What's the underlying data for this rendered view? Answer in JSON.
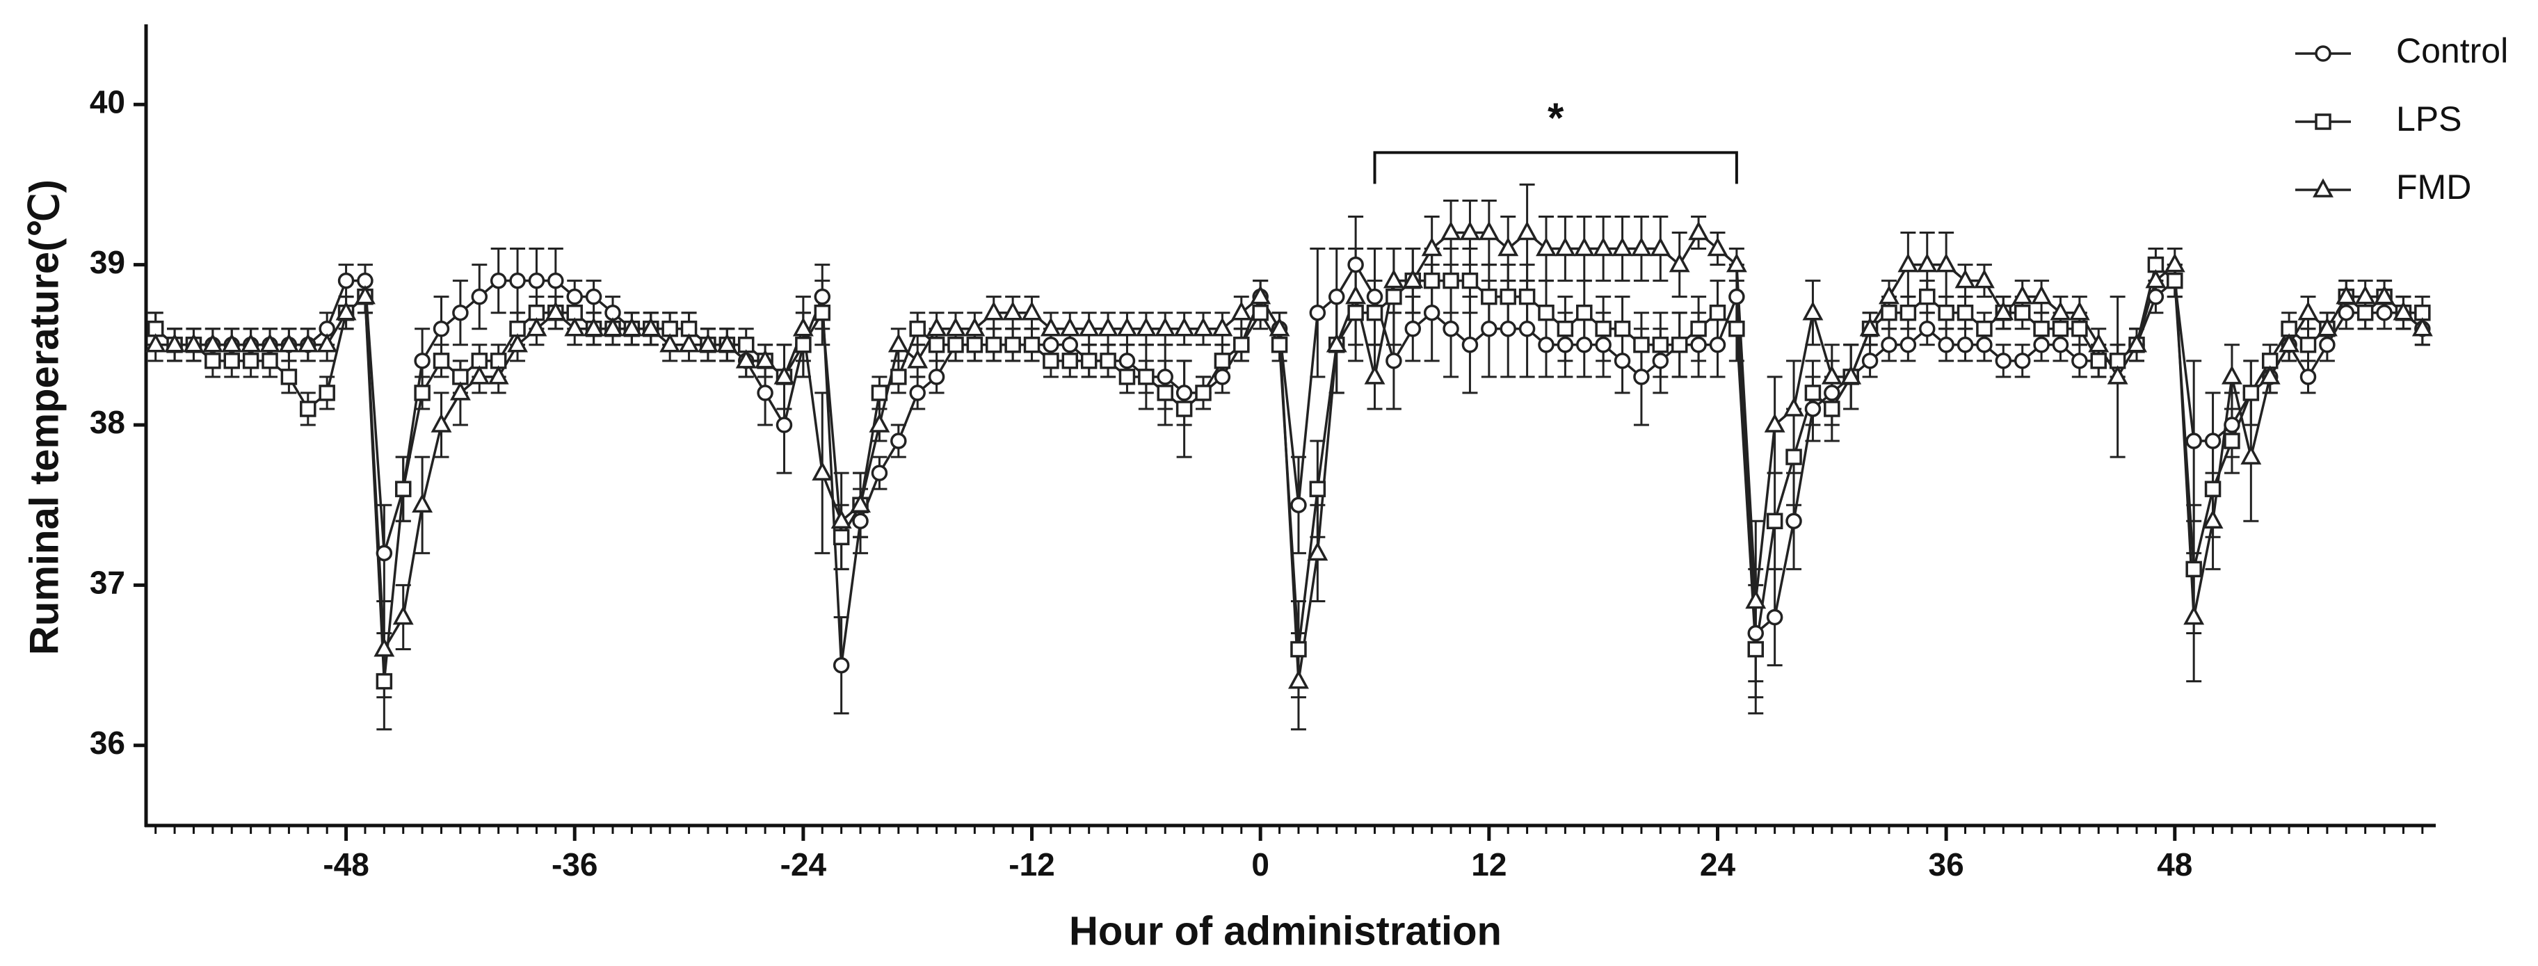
{
  "chart_data": {
    "type": "line",
    "xlabel": "Hour of administration",
    "ylabel": "Ruminal temperature(℃)",
    "xlim": [
      -58.5,
      61.7
    ],
    "ylim": [
      35.5,
      40.5
    ],
    "xticks": [
      -48,
      -36,
      -24,
      -12,
      0,
      12,
      24,
      36,
      48
    ],
    "yticks": [
      36,
      37,
      38,
      39,
      40
    ],
    "legend": "top-right",
    "annotations": [
      {
        "text": "*",
        "x": [
          6,
          25
        ],
        "y": 39.7
      }
    ],
    "x": [
      -58,
      -57,
      -56,
      -55,
      -54,
      -53,
      -52,
      -51,
      -50,
      -49,
      -48,
      -47,
      -46,
      -45,
      -44,
      -43,
      -42,
      -41,
      -40,
      -39,
      -38,
      -37,
      -36,
      -35,
      -34,
      -33,
      -32,
      -31,
      -30,
      -29,
      -28,
      -27,
      -26,
      -25,
      -24,
      -23,
      -22,
      -21,
      -20,
      -19,
      -18,
      -17,
      -16,
      -15,
      -14,
      -13,
      -12,
      -11,
      -10,
      -9,
      -8,
      -7,
      -6,
      -5,
      -4,
      -3,
      -2,
      -1,
      0,
      1,
      2,
      3,
      4,
      5,
      6,
      7,
      8,
      9,
      10,
      11,
      12,
      13,
      14,
      15,
      16,
      17,
      18,
      19,
      20,
      21,
      22,
      23,
      24,
      25,
      26,
      27,
      28,
      29,
      30,
      31,
      32,
      33,
      34,
      35,
      36,
      37,
      38,
      39,
      40,
      41,
      42,
      43,
      44,
      45,
      46,
      47,
      48,
      49,
      50,
      51,
      52,
      53,
      54,
      55,
      56,
      57,
      58,
      59,
      60,
      61
    ],
    "series": [
      {
        "name": "Control",
        "color": "#222222",
        "marker": "circle",
        "values": [
          38.6,
          38.5,
          38.5,
          38.5,
          38.5,
          38.5,
          38.5,
          38.5,
          38.5,
          38.6,
          38.9,
          38.9,
          37.2,
          37.6,
          38.4,
          38.6,
          38.7,
          38.8,
          38.9,
          38.9,
          38.9,
          38.9,
          38.8,
          38.8,
          38.7,
          38.6,
          38.6,
          38.6,
          38.6,
          38.5,
          38.5,
          38.4,
          38.2,
          38.0,
          38.5,
          38.8,
          36.5,
          37.4,
          37.7,
          37.9,
          38.2,
          38.3,
          38.5,
          38.5,
          38.5,
          38.5,
          38.5,
          38.5,
          38.5,
          38.4,
          38.4,
          38.4,
          38.3,
          38.3,
          38.2,
          38.2,
          38.3,
          38.5,
          38.8,
          38.6,
          37.5,
          38.7,
          38.8,
          39.0,
          38.8,
          38.4,
          38.6,
          38.7,
          38.6,
          38.5,
          38.6,
          38.6,
          38.6,
          38.5,
          38.5,
          38.5,
          38.5,
          38.4,
          38.3,
          38.4,
          38.5,
          38.5,
          38.5,
          38.8,
          36.7,
          36.8,
          37.4,
          38.1,
          38.2,
          38.3,
          38.4,
          38.5,
          38.5,
          38.6,
          38.5,
          38.5,
          38.5,
          38.4,
          38.4,
          38.5,
          38.5,
          38.4,
          38.4,
          38.4,
          38.5,
          38.8,
          38.9,
          37.9,
          37.9,
          38.0,
          38.2,
          38.3,
          38.5,
          38.3,
          38.5,
          38.7,
          38.7,
          38.7,
          38.7,
          38.6
        ],
        "errors": [
          0.1,
          0.1,
          0.1,
          0.1,
          0.1,
          0.1,
          0.1,
          0.1,
          0.1,
          0.1,
          0.1,
          0.1,
          0.3,
          0.2,
          0.2,
          0.2,
          0.2,
          0.2,
          0.2,
          0.2,
          0.2,
          0.2,
          0.1,
          0.1,
          0.1,
          0.1,
          0.1,
          0.1,
          0.1,
          0.1,
          0.1,
          0.1,
          0.2,
          0.3,
          0.2,
          0.2,
          0.3,
          0.2,
          0.1,
          0.1,
          0.1,
          0.1,
          0.1,
          0.1,
          0.1,
          0.1,
          0.1,
          0.1,
          0.1,
          0.1,
          0.1,
          0.1,
          0.2,
          0.2,
          0.2,
          0.1,
          0.1,
          0.1,
          0.1,
          0.1,
          0.3,
          0.4,
          0.3,
          0.3,
          0.3,
          0.3,
          0.2,
          0.3,
          0.3,
          0.3,
          0.3,
          0.3,
          0.3,
          0.2,
          0.2,
          0.2,
          0.2,
          0.2,
          0.3,
          0.2,
          0.2,
          0.2,
          0.2,
          0.2,
          0.4,
          0.3,
          0.3,
          0.2,
          0.2,
          0.2,
          0.1,
          0.1,
          0.1,
          0.1,
          0.1,
          0.1,
          0.1,
          0.1,
          0.1,
          0.1,
          0.1,
          0.1,
          0.1,
          0.1,
          0.1,
          0.1,
          0.1,
          0.5,
          0.3,
          0.2,
          0.2,
          0.1,
          0.1,
          0.1,
          0.1,
          0.1,
          0.1,
          0.1,
          0.1,
          0.1
        ]
      },
      {
        "name": "LPS",
        "color": "#222222",
        "marker": "square",
        "values": [
          38.6,
          38.5,
          38.5,
          38.4,
          38.4,
          38.4,
          38.4,
          38.3,
          38.1,
          38.2,
          38.7,
          38.8,
          36.4,
          37.6,
          38.2,
          38.4,
          38.3,
          38.4,
          38.4,
          38.6,
          38.7,
          38.7,
          38.7,
          38.6,
          38.6,
          38.6,
          38.6,
          38.6,
          38.6,
          38.5,
          38.5,
          38.5,
          38.4,
          38.3,
          38.5,
          38.7,
          37.3,
          37.5,
          38.2,
          38.3,
          38.6,
          38.5,
          38.5,
          38.5,
          38.5,
          38.5,
          38.5,
          38.4,
          38.4,
          38.4,
          38.4,
          38.3,
          38.3,
          38.2,
          38.1,
          38.2,
          38.4,
          38.5,
          38.7,
          38.5,
          36.6,
          37.6,
          38.5,
          38.7,
          38.7,
          38.8,
          38.9,
          38.9,
          38.9,
          38.9,
          38.8,
          38.8,
          38.8,
          38.7,
          38.6,
          38.7,
          38.6,
          38.6,
          38.5,
          38.5,
          38.5,
          38.6,
          38.7,
          38.6,
          36.6,
          37.4,
          37.8,
          38.2,
          38.1,
          38.3,
          38.6,
          38.7,
          38.7,
          38.8,
          38.7,
          38.7,
          38.6,
          38.7,
          38.7,
          38.6,
          38.6,
          38.6,
          38.4,
          38.4,
          38.5,
          39.0,
          38.9,
          37.1,
          37.6,
          37.9,
          38.2,
          38.4,
          38.6,
          38.5,
          38.6,
          38.8,
          38.7,
          38.8,
          38.7,
          38.7
        ],
        "errors": [
          0.1,
          0.1,
          0.1,
          0.1,
          0.1,
          0.1,
          0.1,
          0.1,
          0.1,
          0.1,
          0.1,
          0.1,
          0.3,
          0.2,
          0.1,
          0.1,
          0.1,
          0.1,
          0.1,
          0.1,
          0.1,
          0.1,
          0.1,
          0.1,
          0.1,
          0.1,
          0.1,
          0.1,
          0.1,
          0.1,
          0.1,
          0.1,
          0.1,
          0.2,
          0.2,
          0.2,
          0.2,
          0.2,
          0.1,
          0.1,
          0.1,
          0.1,
          0.1,
          0.1,
          0.1,
          0.1,
          0.1,
          0.1,
          0.1,
          0.1,
          0.1,
          0.1,
          0.1,
          0.2,
          0.3,
          0.1,
          0.1,
          0.1,
          0.1,
          0.1,
          0.3,
          0.3,
          0.3,
          0.3,
          0.2,
          0.3,
          0.2,
          0.2,
          0.2,
          0.2,
          0.2,
          0.2,
          0.2,
          0.2,
          0.2,
          0.2,
          0.2,
          0.2,
          0.2,
          0.2,
          0.2,
          0.2,
          0.2,
          0.2,
          0.4,
          0.3,
          0.3,
          0.2,
          0.2,
          0.2,
          0.1,
          0.1,
          0.1,
          0.1,
          0.1,
          0.1,
          0.1,
          0.1,
          0.1,
          0.1,
          0.1,
          0.1,
          0.1,
          0.1,
          0.1,
          0.1,
          0.1,
          0.4,
          0.3,
          0.2,
          0.2,
          0.1,
          0.1,
          0.1,
          0.1,
          0.1,
          0.1,
          0.1,
          0.1,
          0.1
        ]
      },
      {
        "name": "FMD",
        "color": "#222222",
        "marker": "triangle",
        "values": [
          38.5,
          38.5,
          38.5,
          38.5,
          38.5,
          38.5,
          38.5,
          38.5,
          38.5,
          38.5,
          38.7,
          38.8,
          36.6,
          36.8,
          37.5,
          38.0,
          38.2,
          38.3,
          38.3,
          38.5,
          38.6,
          38.7,
          38.6,
          38.6,
          38.6,
          38.6,
          38.6,
          38.5,
          38.5,
          38.5,
          38.5,
          38.4,
          38.4,
          38.3,
          38.6,
          37.7,
          37.4,
          37.5,
          38.0,
          38.5,
          38.4,
          38.6,
          38.6,
          38.6,
          38.7,
          38.7,
          38.7,
          38.6,
          38.6,
          38.6,
          38.6,
          38.6,
          38.6,
          38.6,
          38.6,
          38.6,
          38.6,
          38.7,
          38.8,
          38.6,
          36.4,
          37.2,
          38.5,
          38.8,
          38.3,
          38.9,
          38.9,
          39.1,
          39.2,
          39.2,
          39.2,
          39.1,
          39.2,
          39.1,
          39.1,
          39.1,
          39.1,
          39.1,
          39.1,
          39.1,
          39.0,
          39.2,
          39.1,
          39.0,
          36.9,
          38.0,
          38.1,
          38.7,
          38.3,
          38.3,
          38.6,
          38.8,
          39.0,
          39.0,
          39.0,
          38.9,
          38.9,
          38.7,
          38.8,
          38.8,
          38.7,
          38.7,
          38.5,
          38.3,
          38.5,
          38.9,
          39.0,
          36.8,
          37.4,
          38.3,
          37.8,
          38.3,
          38.5,
          38.7,
          38.6,
          38.8,
          38.8,
          38.8,
          38.7,
          38.6
        ],
        "errors": [
          0.1,
          0.1,
          0.1,
          0.1,
          0.1,
          0.1,
          0.1,
          0.1,
          0.1,
          0.1,
          0.1,
          0.1,
          0.3,
          0.2,
          0.3,
          0.2,
          0.2,
          0.1,
          0.1,
          0.1,
          0.1,
          0.1,
          0.1,
          0.1,
          0.1,
          0.1,
          0.1,
          0.1,
          0.1,
          0.1,
          0.1,
          0.1,
          0.1,
          0.2,
          0.2,
          0.5,
          0.3,
          0.2,
          0.1,
          0.1,
          0.1,
          0.1,
          0.1,
          0.1,
          0.1,
          0.1,
          0.1,
          0.1,
          0.1,
          0.1,
          0.1,
          0.1,
          0.1,
          0.1,
          0.1,
          0.1,
          0.1,
          0.1,
          0.1,
          0.1,
          0.3,
          0.3,
          0.3,
          0.3,
          0.2,
          0.2,
          0.2,
          0.2,
          0.2,
          0.2,
          0.2,
          0.2,
          0.3,
          0.2,
          0.2,
          0.2,
          0.2,
          0.2,
          0.2,
          0.2,
          0.2,
          0.1,
          0.1,
          0.1,
          0.5,
          0.3,
          0.3,
          0.2,
          0.2,
          0.2,
          0.1,
          0.1,
          0.2,
          0.2,
          0.2,
          0.1,
          0.1,
          0.1,
          0.1,
          0.1,
          0.1,
          0.1,
          0.1,
          0.5,
          0.1,
          0.1,
          0.1,
          0.4,
          0.3,
          0.2,
          0.4,
          0.1,
          0.1,
          0.1,
          0.1,
          0.1,
          0.1,
          0.1,
          0.1,
          0.1
        ]
      }
    ]
  }
}
